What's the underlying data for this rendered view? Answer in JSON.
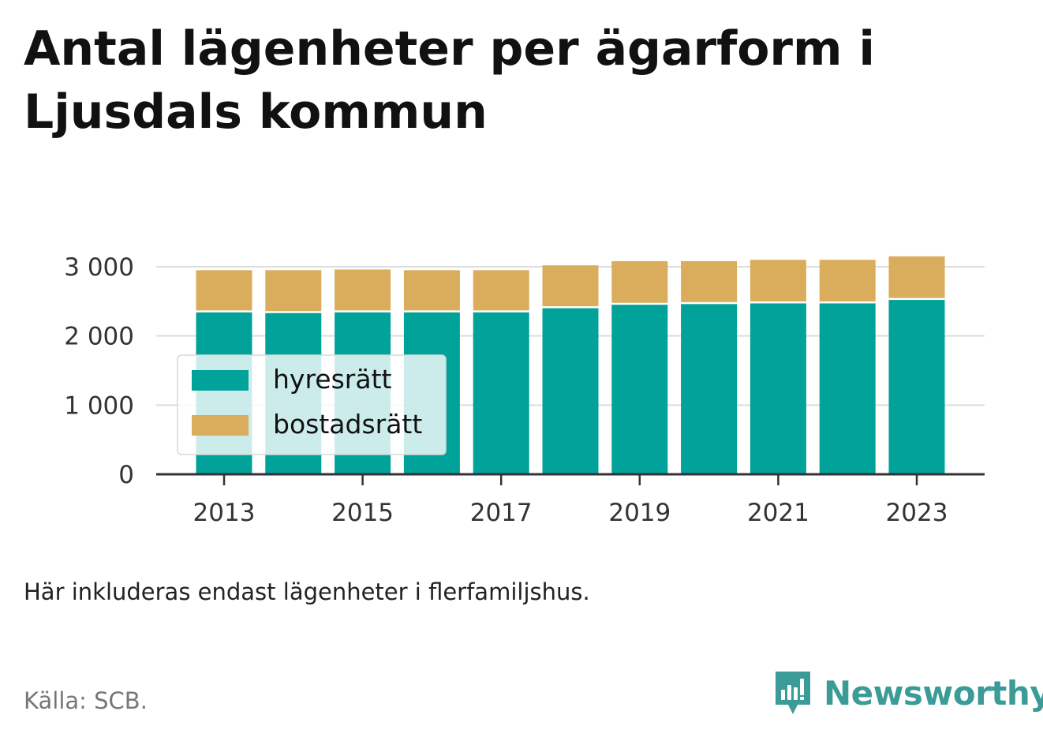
{
  "title": "Antal lägenheter per ägarform i Ljusdals kommun",
  "note": "Här inkluderas endast lägenheter i flerfamiljshus.",
  "source": "Källa: SCB.",
  "brand": {
    "name": "Newsworthy",
    "icon": "bar-chart-speech-bubble-icon",
    "color": "#3a9b97"
  },
  "chart_data": {
    "type": "bar",
    "stacked": true,
    "categories": [
      "2013",
      "2014",
      "2015",
      "2016",
      "2017",
      "2018",
      "2019",
      "2020",
      "2021",
      "2022",
      "2023"
    ],
    "x_tick_labels": [
      "2013",
      "2015",
      "2017",
      "2019",
      "2021",
      "2023"
    ],
    "series": [
      {
        "name": "hyresrätt",
        "color": "#00a29a",
        "values": [
          2340,
          2330,
          2340,
          2340,
          2340,
          2400,
          2450,
          2460,
          2470,
          2470,
          2520
        ]
      },
      {
        "name": "bostadsrätt",
        "color": "#d9ad5b",
        "values": [
          610,
          620,
          620,
          610,
          610,
          620,
          630,
          620,
          630,
          630,
          630
        ]
      }
    ],
    "ylim": [
      0,
      3000
    ],
    "y_ticks": [
      0,
      1000,
      2000,
      3000
    ],
    "y_tick_labels": [
      "0",
      "1 000",
      "2 000",
      "3 000"
    ],
    "grid": true,
    "legend_position": "bottom-left inside"
  }
}
